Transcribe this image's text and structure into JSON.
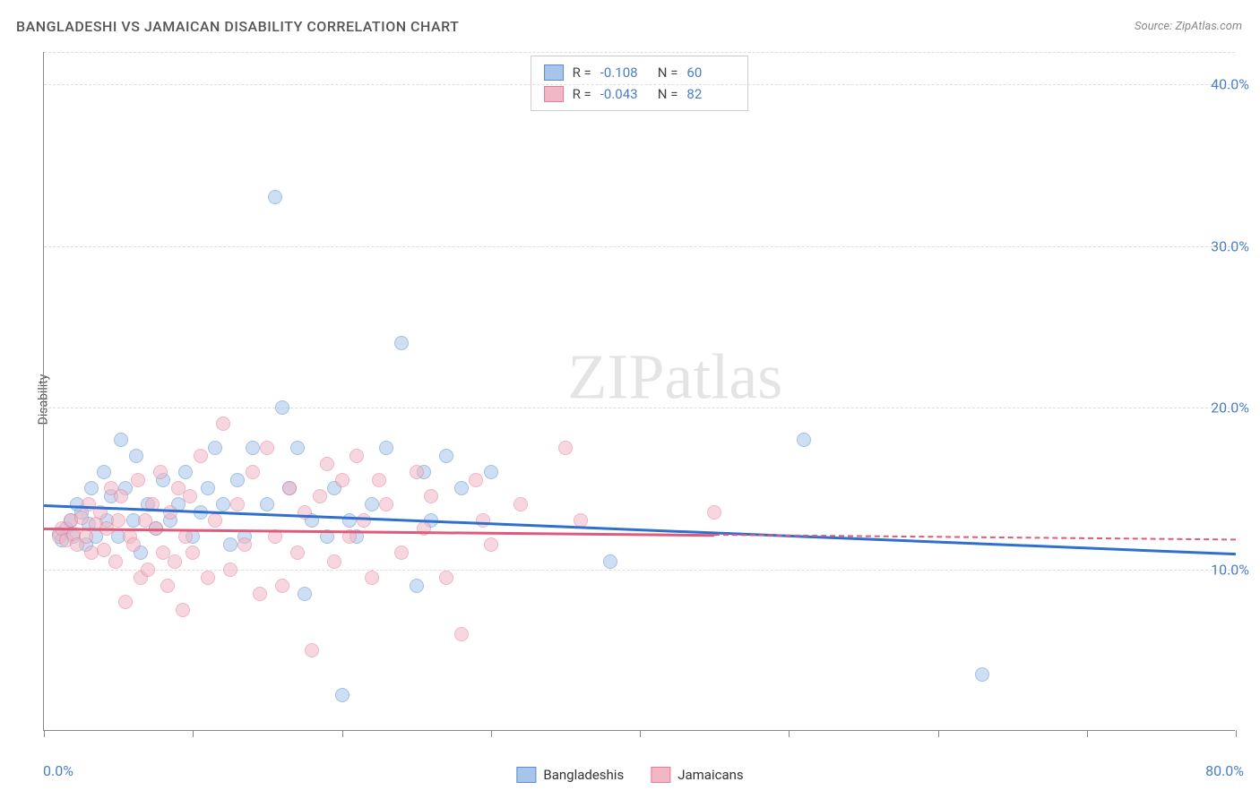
{
  "title": "BANGLADESHI VS JAMAICAN DISABILITY CORRELATION CHART",
  "source_label": "Source:",
  "source_value": "ZipAtlas.com",
  "watermark": {
    "bold": "ZIP",
    "thin": "atlas"
  },
  "ylabel": "Disability",
  "chart": {
    "type": "scatter",
    "xlim": [
      0,
      80
    ],
    "ylim": [
      0,
      42
    ],
    "x_axis_labels": [
      {
        "value": 0,
        "text": "0.0%"
      },
      {
        "value": 80,
        "text": "80.0%"
      }
    ],
    "y_axis_labels": [
      {
        "value": 10,
        "text": "10.0%"
      },
      {
        "value": 20,
        "text": "20.0%"
      },
      {
        "value": 30,
        "text": "30.0%"
      },
      {
        "value": 40,
        "text": "40.0%"
      }
    ],
    "y_gridlines": [
      10,
      20,
      30,
      40,
      42
    ],
    "x_ticks": [
      0,
      10,
      20,
      30,
      40,
      50,
      60,
      70,
      80
    ],
    "background_color": "#ffffff",
    "marker_radius": 8,
    "marker_opacity": 0.55,
    "series": [
      {
        "name": "Bangladeshis",
        "fill": "#a7c5ea",
        "stroke": "#5a8dd0",
        "line_color": "#2f6fd0",
        "r": -0.108,
        "n": 60,
        "trend": {
          "x1": 0,
          "y1": 14.0,
          "x2": 80,
          "y2": 11.0
        },
        "points": [
          [
            1,
            12.2
          ],
          [
            1.2,
            11.8
          ],
          [
            1.5,
            12.5
          ],
          [
            1.8,
            13
          ],
          [
            2,
            12
          ],
          [
            2.2,
            14
          ],
          [
            2.5,
            13.5
          ],
          [
            2.8,
            11.5
          ],
          [
            3,
            12.8
          ],
          [
            3.2,
            15
          ],
          [
            3.5,
            12
          ],
          [
            4,
            16
          ],
          [
            4.2,
            13
          ],
          [
            4.5,
            14.5
          ],
          [
            5,
            12
          ],
          [
            5.2,
            18
          ],
          [
            5.5,
            15
          ],
          [
            6,
            13
          ],
          [
            6.2,
            17
          ],
          [
            6.5,
            11
          ],
          [
            7,
            14
          ],
          [
            7.5,
            12.5
          ],
          [
            8,
            15.5
          ],
          [
            8.5,
            13
          ],
          [
            9,
            14
          ],
          [
            9.5,
            16
          ],
          [
            10,
            12
          ],
          [
            10.5,
            13.5
          ],
          [
            11,
            15
          ],
          [
            11.5,
            17.5
          ],
          [
            12,
            14
          ],
          [
            12.5,
            11.5
          ],
          [
            13,
            15.5
          ],
          [
            13.5,
            12
          ],
          [
            14,
            17.5
          ],
          [
            15,
            14
          ],
          [
            15.5,
            33
          ],
          [
            16,
            20
          ],
          [
            16.5,
            15
          ],
          [
            17,
            17.5
          ],
          [
            17.5,
            8.5
          ],
          [
            18,
            13
          ],
          [
            19,
            12
          ],
          [
            19.5,
            15
          ],
          [
            20,
            2.2
          ],
          [
            20.5,
            13
          ],
          [
            21,
            12
          ],
          [
            22,
            14
          ],
          [
            23,
            17.5
          ],
          [
            24,
            24
          ],
          [
            25,
            9
          ],
          [
            25.5,
            16
          ],
          [
            26,
            13
          ],
          [
            27,
            17
          ],
          [
            28,
            15
          ],
          [
            30,
            16
          ],
          [
            38,
            10.5
          ],
          [
            51,
            18
          ],
          [
            63,
            3.5
          ]
        ]
      },
      {
        "name": "Jamaicans",
        "fill": "#f2b7c5",
        "stroke": "#e77a95",
        "line_color": "#e05a7a",
        "r": -0.043,
        "n": 82,
        "trend": {
          "x1": 0,
          "y1": 12.6,
          "x2": 45,
          "y2": 12.2
        },
        "trend_dash": {
          "x1": 45,
          "y1": 12.2,
          "x2": 80,
          "y2": 11.9
        },
        "points": [
          [
            1,
            12
          ],
          [
            1.2,
            12.5
          ],
          [
            1.5,
            11.8
          ],
          [
            1.8,
            13
          ],
          [
            2,
            12.2
          ],
          [
            2.2,
            11.5
          ],
          [
            2.5,
            13.2
          ],
          [
            2.8,
            12
          ],
          [
            3,
            14
          ],
          [
            3.2,
            11
          ],
          [
            3.5,
            12.8
          ],
          [
            3.8,
            13.5
          ],
          [
            4,
            11.2
          ],
          [
            4.2,
            12.5
          ],
          [
            4.5,
            15
          ],
          [
            4.8,
            10.5
          ],
          [
            5,
            13
          ],
          [
            5.2,
            14.5
          ],
          [
            5.5,
            8
          ],
          [
            5.8,
            12
          ],
          [
            6,
            11.5
          ],
          [
            6.3,
            15.5
          ],
          [
            6.5,
            9.5
          ],
          [
            6.8,
            13
          ],
          [
            7,
            10
          ],
          [
            7.3,
            14
          ],
          [
            7.5,
            12.5
          ],
          [
            7.8,
            16
          ],
          [
            8,
            11
          ],
          [
            8.3,
            9
          ],
          [
            8.5,
            13.5
          ],
          [
            8.8,
            10.5
          ],
          [
            9,
            15
          ],
          [
            9.3,
            7.5
          ],
          [
            9.5,
            12
          ],
          [
            9.8,
            14.5
          ],
          [
            10,
            11
          ],
          [
            10.5,
            17
          ],
          [
            11,
            9.5
          ],
          [
            11.5,
            13
          ],
          [
            12,
            19
          ],
          [
            12.5,
            10
          ],
          [
            13,
            14
          ],
          [
            13.5,
            11.5
          ],
          [
            14,
            16
          ],
          [
            14.5,
            8.5
          ],
          [
            15,
            17.5
          ],
          [
            15.5,
            12
          ],
          [
            16,
            9
          ],
          [
            16.5,
            15
          ],
          [
            17,
            11
          ],
          [
            17.5,
            13.5
          ],
          [
            18,
            5
          ],
          [
            18.5,
            14.5
          ],
          [
            19,
            16.5
          ],
          [
            19.5,
            10.5
          ],
          [
            20,
            15.5
          ],
          [
            20.5,
            12
          ],
          [
            21,
            17
          ],
          [
            21.5,
            13
          ],
          [
            22,
            9.5
          ],
          [
            22.5,
            15.5
          ],
          [
            23,
            14
          ],
          [
            24,
            11
          ],
          [
            25,
            16
          ],
          [
            25.5,
            12.5
          ],
          [
            26,
            14.5
          ],
          [
            27,
            9.5
          ],
          [
            28,
            6
          ],
          [
            29,
            15.5
          ],
          [
            29.5,
            13
          ],
          [
            30,
            11.5
          ],
          [
            32,
            14
          ],
          [
            35,
            17.5
          ],
          [
            36,
            13
          ],
          [
            45,
            13.5
          ]
        ]
      }
    ]
  },
  "legend_bottom": [
    {
      "label": "Bangladeshis",
      "fill": "#a7c5ea",
      "stroke": "#5a8dd0"
    },
    {
      "label": "Jamaicans",
      "fill": "#f2b7c5",
      "stroke": "#e77a95"
    }
  ]
}
